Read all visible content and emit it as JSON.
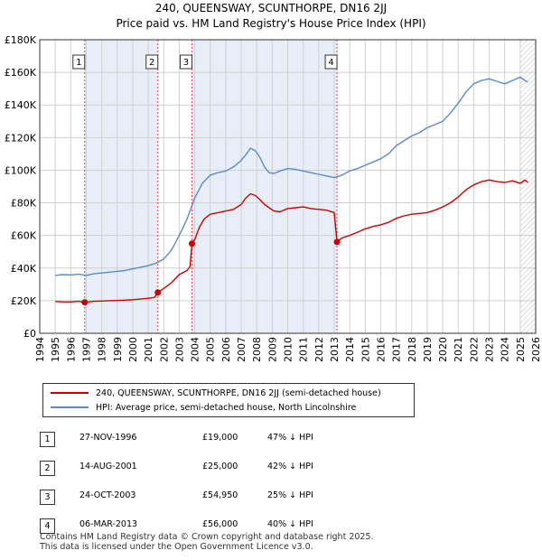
{
  "title_line1": "240, QUEENSWAY, SCUNTHORPE, DN16 2JJ",
  "title_line2": "Price paid vs. HM Land Registry's House Price Index (HPI)",
  "colors": {
    "price": "#cc0000",
    "hpi": "#5b8ac6",
    "shade": "#e8eef8",
    "grid": "#d0d0d0",
    "vline": "#dd4444"
  },
  "legend": {
    "price_label": "240, QUEENSWAY, SCUNTHORPE, DN16 2JJ (semi-detached house)",
    "hpi_label": "HPI: Average price, semi-detached house, North Lincolnshire"
  },
  "sales_table": [
    {
      "num": "1",
      "date": "27-NOV-1996",
      "price": "£19,000",
      "hpi": "47% ↓ HPI"
    },
    {
      "num": "2",
      "date": "14-AUG-2001",
      "price": "£25,000",
      "hpi": "42% ↓ HPI"
    },
    {
      "num": "3",
      "date": "24-OCT-2003",
      "price": "£54,950",
      "hpi": "25% ↓ HPI"
    },
    {
      "num": "4",
      "date": "06-MAR-2013",
      "price": "£56,000",
      "hpi": "40% ↓ HPI"
    }
  ],
  "footer": {
    "line1": "Contains HM Land Registry data © Crown copyright and database right 2025.",
    "line2": "This data is licensed under the Open Government Licence v3.0."
  },
  "chart_data": {
    "type": "line",
    "title": "240, QUEENSWAY, SCUNTHORPE, DN16 2JJ",
    "subtitle": "Price paid vs. HM Land Registry's House Price Index (HPI)",
    "xlabel": "",
    "ylabel": "",
    "xlim": [
      1994,
      2026
    ],
    "ylim": [
      0,
      180000
    ],
    "x_ticks": [
      1994,
      1995,
      1996,
      1997,
      1998,
      1999,
      2000,
      2001,
      2002,
      2003,
      2004,
      2005,
      2006,
      2007,
      2008,
      2009,
      2010,
      2011,
      2012,
      2013,
      2014,
      2015,
      2016,
      2017,
      2018,
      2019,
      2020,
      2021,
      2022,
      2023,
      2024,
      2025,
      2026
    ],
    "y_ticks": [
      {
        "value": 0,
        "label": "£0"
      },
      {
        "value": 20000,
        "label": "£20K"
      },
      {
        "value": 40000,
        "label": "£40K"
      },
      {
        "value": 60000,
        "label": "£60K"
      },
      {
        "value": 80000,
        "label": "£80K"
      },
      {
        "value": 100000,
        "label": "£100K"
      },
      {
        "value": 120000,
        "label": "£120K"
      },
      {
        "value": 140000,
        "label": "£140K"
      },
      {
        "value": 160000,
        "label": "£160K"
      },
      {
        "value": 180000,
        "label": "£180K"
      }
    ],
    "grid": true,
    "shaded_regions": [
      [
        1996.9,
        2001.6
      ],
      [
        2003.8,
        2013.2
      ]
    ],
    "hatched_after": 2025.0,
    "series": [
      {
        "name": "240, QUEENSWAY, SCUNTHORPE, DN16 2JJ (semi-detached house)",
        "color": "#cc0000",
        "x": [
          1995.0,
          1995.5,
          1996.0,
          1996.5,
          1996.9,
          1997.5,
          1998.0,
          1998.5,
          1999.0,
          1999.5,
          2000.0,
          2000.5,
          2001.0,
          2001.4,
          2001.62,
          2002.0,
          2002.5,
          2003.0,
          2003.5,
          2003.7,
          2003.82,
          2004.0,
          2004.3,
          2004.6,
          2005.0,
          2005.5,
          2006.0,
          2006.5,
          2007.0,
          2007.3,
          2007.6,
          2007.9,
          2008.2,
          2008.5,
          2008.8,
          2009.1,
          2009.5,
          2010.0,
          2010.5,
          2011.0,
          2011.5,
          2012.0,
          2012.5,
          2013.0,
          2013.18,
          2013.5,
          2014.0,
          2014.5,
          2015.0,
          2015.5,
          2016.0,
          2016.5,
          2017.0,
          2017.5,
          2018.0,
          2018.5,
          2019.0,
          2019.5,
          2020.0,
          2020.5,
          2021.0,
          2021.5,
          2022.0,
          2022.5,
          2023.0,
          2023.5,
          2024.0,
          2024.5,
          2025.0,
          2025.3,
          2025.5
        ],
        "values": [
          19500,
          19300,
          19200,
          19600,
          19000,
          19600,
          19800,
          20000,
          20100,
          20300,
          20600,
          21000,
          21500,
          22000,
          25000,
          27500,
          31000,
          36000,
          38500,
          41000,
          54950,
          57500,
          65000,
          70000,
          73000,
          74000,
          75000,
          76000,
          79000,
          83000,
          85500,
          84500,
          82000,
          79000,
          77000,
          75000,
          74500,
          76500,
          77000,
          77500,
          76500,
          76000,
          75500,
          74000,
          56000,
          58500,
          60000,
          62000,
          64000,
          65500,
          66500,
          68000,
          70500,
          72000,
          73000,
          73500,
          74000,
          75500,
          77500,
          80000,
          83500,
          88000,
          91000,
          93000,
          94000,
          93000,
          92500,
          93500,
          92000,
          94000,
          92500
        ]
      },
      {
        "name": "HPI: Average price, semi-detached house, North Lincolnshire",
        "color": "#5b8ac6",
        "x": [
          1995.0,
          1995.5,
          1996.0,
          1996.5,
          1997.0,
          1997.5,
          1998.0,
          1998.5,
          1999.0,
          1999.5,
          2000.0,
          2000.5,
          2001.0,
          2001.5,
          2002.0,
          2002.5,
          2003.0,
          2003.5,
          2004.0,
          2004.5,
          2005.0,
          2005.5,
          2006.0,
          2006.5,
          2007.0,
          2007.3,
          2007.6,
          2007.9,
          2008.2,
          2008.5,
          2008.8,
          2009.1,
          2009.5,
          2010.0,
          2010.5,
          2011.0,
          2011.5,
          2012.0,
          2012.5,
          2013.0,
          2013.5,
          2014.0,
          2014.5,
          2015.0,
          2015.5,
          2016.0,
          2016.5,
          2017.0,
          2017.5,
          2018.0,
          2018.5,
          2019.0,
          2019.5,
          2020.0,
          2020.5,
          2021.0,
          2021.5,
          2022.0,
          2022.5,
          2023.0,
          2023.5,
          2024.0,
          2024.5,
          2025.0,
          2025.3,
          2025.5
        ],
        "values": [
          35500,
          36000,
          35800,
          36200,
          35500,
          36500,
          37000,
          37500,
          38000,
          38500,
          39500,
          40500,
          41500,
          43000,
          45500,
          51000,
          60000,
          70000,
          83000,
          92000,
          97000,
          98500,
          99500,
          102000,
          106000,
          109500,
          113500,
          112000,
          108000,
          102000,
          98500,
          98000,
          99500,
          101000,
          100500,
          99500,
          98500,
          97500,
          96500,
          95500,
          97000,
          99500,
          101000,
          103000,
          105000,
          107000,
          110000,
          115000,
          118000,
          121000,
          123000,
          126000,
          128000,
          130000,
          135000,
          141000,
          148000,
          153000,
          155000,
          156000,
          154500,
          153000,
          155000,
          157000,
          155000,
          154000
        ]
      }
    ],
    "sales": [
      {
        "label": "1",
        "x": 1996.9,
        "price": 19000
      },
      {
        "label": "2",
        "x": 2001.62,
        "price": 25000
      },
      {
        "label": "3",
        "x": 2003.82,
        "price": 54950
      },
      {
        "label": "4",
        "x": 2013.18,
        "price": 56000
      }
    ]
  }
}
